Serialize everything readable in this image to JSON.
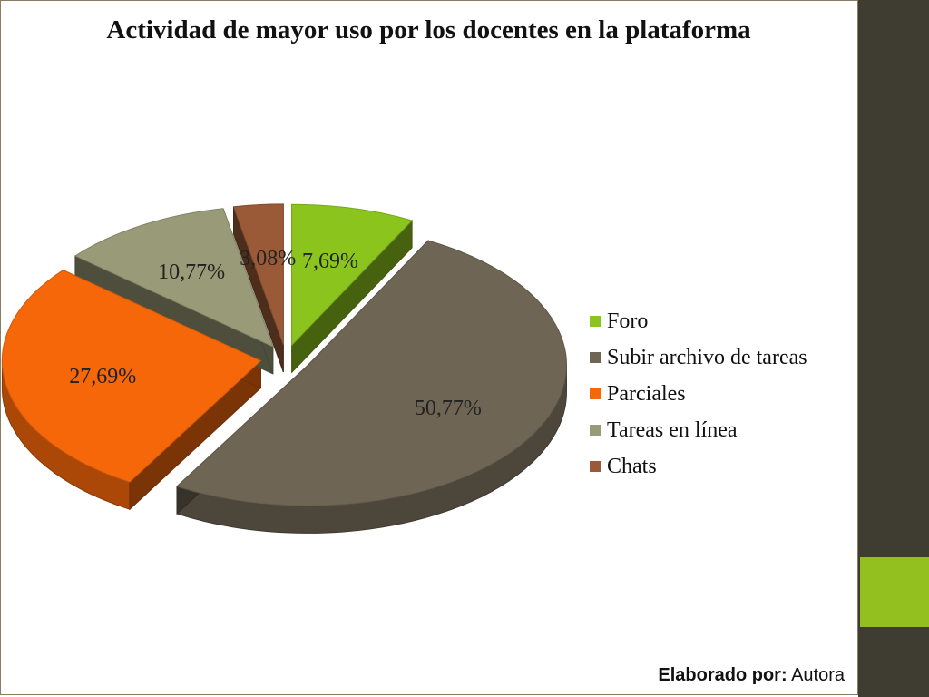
{
  "chart_data": {
    "type": "pie",
    "title": "Actividad de mayor uso por los docentes en la plataforma",
    "categories": [
      "Foro",
      "Subir archivo de tareas",
      "Parciales",
      "Tareas en línea",
      "Chats"
    ],
    "values": [
      7.69,
      50.77,
      27.69,
      10.77,
      3.08
    ],
    "value_labels": [
      "7,69%",
      "50,77%",
      "27,69%",
      "10,77%",
      "3,08%"
    ],
    "colors": [
      "#8cc41e",
      "#6e6554",
      "#f6670a",
      "#999b78",
      "#9a5a37"
    ],
    "exploded": true,
    "three_d": true,
    "legend_position": "right"
  },
  "footer": {
    "credit_label": "Elaborado por:",
    "credit_value": "Autora"
  },
  "theme": {
    "sidebar_color": "#3f3d31",
    "accent_color": "#93c01f"
  }
}
